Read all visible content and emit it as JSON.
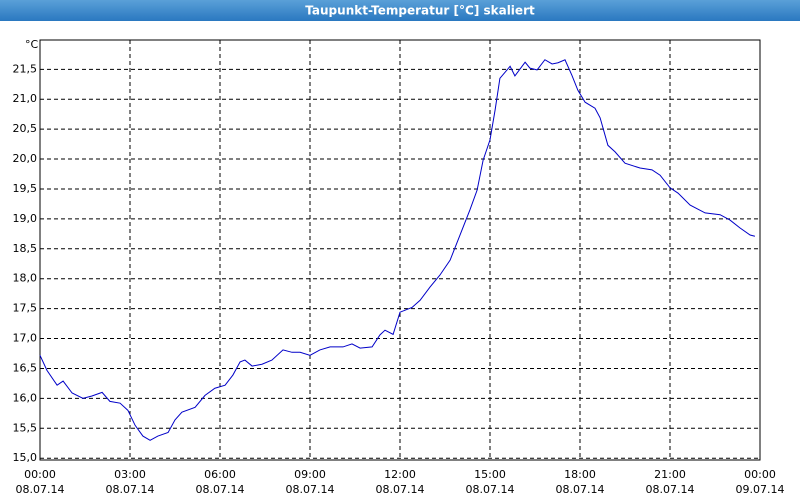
{
  "chart_data": {
    "type": "line",
    "title": "Taupunkt-Temperatur [°C] skaliert",
    "y_unit": "°C",
    "x": [
      0,
      0.23,
      0.57,
      0.77,
      1.07,
      1.43,
      1.73,
      2.07,
      2.33,
      2.67,
      2.93,
      3.17,
      3.43,
      3.67,
      3.93,
      4.27,
      4.5,
      4.73,
      5.17,
      5.5,
      5.83,
      6.17,
      6.43,
      6.67,
      6.83,
      7.07,
      7.4,
      7.73,
      8.1,
      8.4,
      8.67,
      9,
      9.33,
      9.67,
      10.1,
      10.4,
      10.67,
      11.07,
      11.33,
      11.5,
      11.77,
      12,
      12.4,
      12.67,
      13,
      13.33,
      13.67,
      14,
      14.33,
      14.57,
      14.77,
      15,
      15.17,
      15.33,
      15.67,
      15.83,
      16.17,
      16.33,
      16.57,
      16.83,
      17.07,
      17.27,
      17.5,
      17.73,
      17.93,
      18.17,
      18.5,
      18.67,
      18.93,
      19.17,
      19.5,
      20,
      20.4,
      20.67,
      21,
      21.27,
      21.67,
      22.17,
      22.67,
      23,
      23.33,
      23.67,
      23.83
    ],
    "series": [
      {
        "name": "Taupunkt",
        "color": "#0000c8",
        "values": [
          16.72,
          16.47,
          16.22,
          16.29,
          16.09,
          16.0,
          16.04,
          16.1,
          15.95,
          15.92,
          15.8,
          15.55,
          15.37,
          15.3,
          15.37,
          15.43,
          15.64,
          15.77,
          15.85,
          16.05,
          16.17,
          16.22,
          16.39,
          16.61,
          16.64,
          16.54,
          16.57,
          16.64,
          16.81,
          16.77,
          16.77,
          16.72,
          16.81,
          16.86,
          16.86,
          16.91,
          16.84,
          16.86,
          17.06,
          17.14,
          17.07,
          17.44,
          17.52,
          17.64,
          17.86,
          18.06,
          18.31,
          18.73,
          19.15,
          19.48,
          19.98,
          20.32,
          20.82,
          21.35,
          21.55,
          21.39,
          21.62,
          21.52,
          21.49,
          21.66,
          21.59,
          21.61,
          21.66,
          21.4,
          21.15,
          20.95,
          20.85,
          20.69,
          20.23,
          20.12,
          19.93,
          19.85,
          19.82,
          19.73,
          19.52,
          19.43,
          19.23,
          19.1,
          19.07,
          18.98,
          18.85,
          18.73,
          18.71
        ]
      }
    ],
    "xlim": [
      0,
      24
    ],
    "xticks": [
      {
        "value": 0,
        "label": "00:00"
      },
      {
        "value": 3,
        "label": "03:00"
      },
      {
        "value": 6,
        "label": "06:00"
      },
      {
        "value": 9,
        "label": "09:00"
      },
      {
        "value": 12,
        "label": "12:00"
      },
      {
        "value": 15,
        "label": "15:00"
      },
      {
        "value": 18,
        "label": "18:00"
      },
      {
        "value": 21,
        "label": "21:00"
      },
      {
        "value": 24,
        "label": "00:00"
      }
    ],
    "xtick_dates": [
      "08.07.14",
      "08.07.14",
      "08.07.14",
      "08.07.14",
      "08.07.14",
      "08.07.14",
      "08.07.14",
      "08.07.14",
      "09.07.14"
    ],
    "ylim": [
      14.97,
      21.99
    ],
    "yticks": [
      {
        "value": 15,
        "label": "15,0"
      },
      {
        "value": 15.5,
        "label": "15,5"
      },
      {
        "value": 16,
        "label": "16,0"
      },
      {
        "value": 16.5,
        "label": "16,5"
      },
      {
        "value": 17,
        "label": "17,0"
      },
      {
        "value": 17.5,
        "label": "17,5"
      },
      {
        "value": 18,
        "label": "18,0"
      },
      {
        "value": 18.5,
        "label": "18,5"
      },
      {
        "value": 19,
        "label": "19,0"
      },
      {
        "value": 19.5,
        "label": "19,5"
      },
      {
        "value": 20,
        "label": "20,0"
      },
      {
        "value": 20.5,
        "label": "20,5"
      },
      {
        "value": 21,
        "label": "21,0"
      },
      {
        "value": 21.5,
        "label": "21,5"
      }
    ],
    "grid": true
  }
}
